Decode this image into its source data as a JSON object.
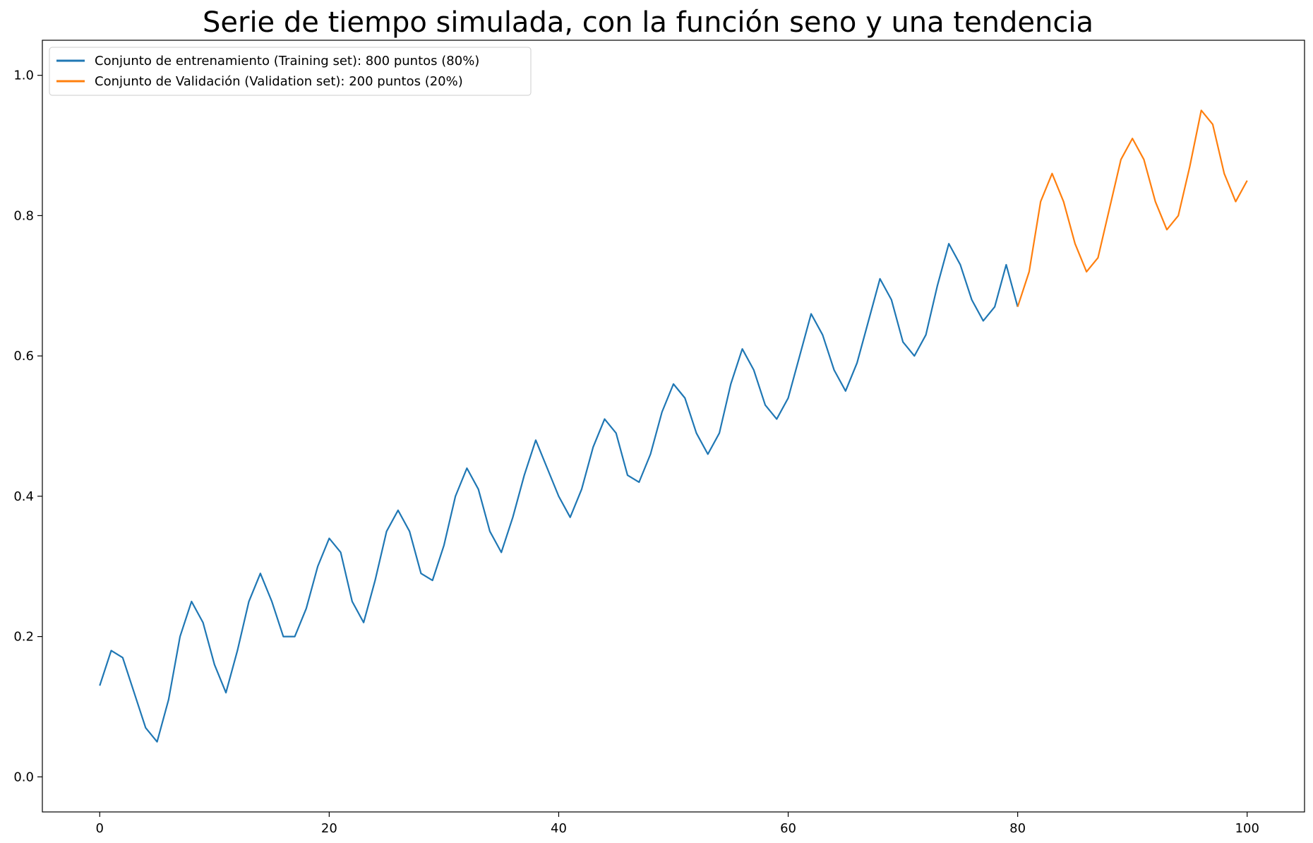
{
  "chart_data": {
    "type": "line",
    "title": "Serie de tiempo simulada, con la función seno y una tendencia",
    "xlabel": "",
    "ylabel": "",
    "xlim": [
      -5,
      105
    ],
    "ylim": [
      -0.05,
      1.05
    ],
    "xticks": [
      0,
      20,
      40,
      60,
      80,
      100
    ],
    "xtick_labels": [
      "0",
      "20",
      "40",
      "60",
      "80",
      "100"
    ],
    "yticks": [
      0.0,
      0.2,
      0.4,
      0.6,
      0.8,
      1.0
    ],
    "ytick_labels": [
      "0.0",
      "0.2",
      "0.4",
      "0.6",
      "0.8",
      "1.0"
    ],
    "grid": false,
    "legend_position": "upper left",
    "series": [
      {
        "name": "Conjunto de entrenamiento (Training set): 800 puntos (80%)",
        "color": "#1f77b4",
        "x": [
          0,
          1,
          2,
          3,
          4,
          5,
          6,
          7,
          8,
          9,
          10,
          11,
          12,
          13,
          14,
          15,
          16,
          17,
          18,
          19,
          20,
          21,
          22,
          23,
          24,
          25,
          26,
          27,
          28,
          29,
          30,
          31,
          32,
          33,
          34,
          35,
          36,
          37,
          38,
          39,
          40,
          41,
          42,
          43,
          44,
          45,
          46,
          47,
          48,
          49,
          50,
          51,
          52,
          53,
          54,
          55,
          56,
          57,
          58,
          59,
          60,
          61,
          62,
          63,
          64,
          65,
          66,
          67,
          68,
          69,
          70,
          71,
          72,
          73,
          74,
          75,
          76,
          77,
          78,
          79,
          80
        ],
        "values": [
          0.13,
          0.18,
          0.17,
          0.12,
          0.07,
          0.05,
          0.11,
          0.2,
          0.25,
          0.22,
          0.16,
          0.12,
          0.18,
          0.25,
          0.29,
          0.25,
          0.2,
          0.2,
          0.24,
          0.3,
          0.34,
          0.32,
          0.25,
          0.22,
          0.28,
          0.35,
          0.38,
          0.35,
          0.29,
          0.28,
          0.33,
          0.4,
          0.44,
          0.41,
          0.35,
          0.32,
          0.37,
          0.43,
          0.48,
          0.44,
          0.4,
          0.37,
          0.41,
          0.47,
          0.51,
          0.49,
          0.43,
          0.42,
          0.46,
          0.52,
          0.56,
          0.54,
          0.49,
          0.46,
          0.49,
          0.56,
          0.61,
          0.58,
          0.53,
          0.51,
          0.54,
          0.6,
          0.66,
          0.63,
          0.58,
          0.55,
          0.59,
          0.65,
          0.71,
          0.68,
          0.62,
          0.6,
          0.63,
          0.7,
          0.76,
          0.73,
          0.68,
          0.65,
          0.67,
          0.73,
          0.67
        ]
      },
      {
        "name": "Conjunto de Validación (Validation set): 200 puntos (20%)",
        "color": "#ff7f0e",
        "x": [
          80,
          81,
          82,
          83,
          84,
          85,
          86,
          87,
          88,
          89,
          90,
          91,
          92,
          93,
          94,
          95,
          96,
          97,
          98,
          99,
          100
        ],
        "values": [
          0.67,
          0.72,
          0.82,
          0.86,
          0.82,
          0.76,
          0.72,
          0.74,
          0.81,
          0.88,
          0.91,
          0.88,
          0.82,
          0.78,
          0.8,
          0.87,
          0.95,
          0.93,
          0.86,
          0.82,
          0.85
        ]
      }
    ]
  }
}
